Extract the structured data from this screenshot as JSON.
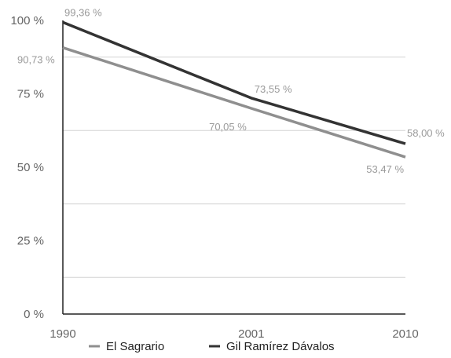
{
  "chart_data": {
    "type": "line",
    "title": "",
    "xlabel": "",
    "ylabel": "",
    "x": [
      "1990",
      "2001",
      "2010"
    ],
    "x_values": [
      1990,
      2001,
      2010
    ],
    "xlim": [
      1990,
      2010
    ],
    "ylim": [
      0,
      100
    ],
    "y_ticks": [
      0,
      25,
      50,
      75,
      100
    ],
    "y_tick_labels": [
      "0 %",
      "25 %",
      "50 %",
      "75 %",
      "100 %"
    ],
    "grid": "horizontal",
    "legend": "bottom",
    "series": [
      {
        "name": "El Sagrario",
        "color": "#8f8f8f",
        "values": [
          90.73,
          70.05,
          53.47
        ],
        "labels": [
          "90,73 %",
          "70,05 %",
          "53,47 %"
        ]
      },
      {
        "name": "Gil Ramírez Dávalos",
        "color": "#333333",
        "values": [
          99.36,
          73.55,
          58.0
        ],
        "labels": [
          "99,36 %",
          "73,55 %",
          "58,00 %"
        ]
      }
    ]
  }
}
